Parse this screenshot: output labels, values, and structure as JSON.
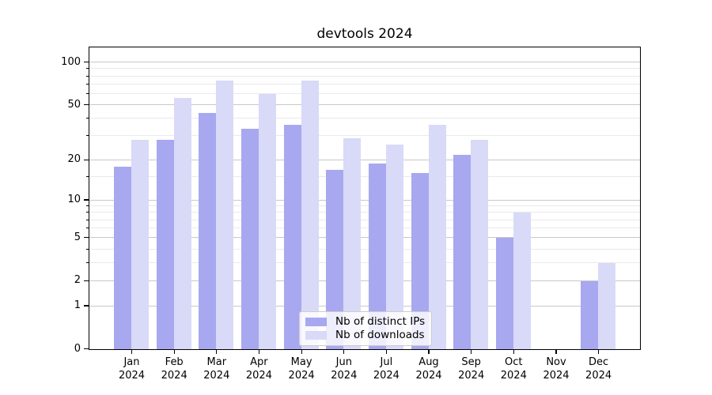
{
  "title": "devtools 2024",
  "colors": {
    "ips_bar": "#a8a8f0",
    "downloads_bar": "#d9d9f8",
    "grid_major": "#c8c8c8",
    "grid_minor": "#eaeaea",
    "spine": "#000000",
    "legend_border": "#cccccc"
  },
  "chart_data": {
    "type": "bar",
    "title": "devtools 2024",
    "x_categories": [
      "Jan",
      "Feb",
      "Mar",
      "Apr",
      "May",
      "Jun",
      "Jul",
      "Aug",
      "Sep",
      "Oct",
      "Nov",
      "Dec"
    ],
    "x_year_line": "2024",
    "series": [
      {
        "name": "Nb of distinct IPs",
        "color_key": "ips_bar",
        "values": [
          18,
          28,
          44,
          34,
          36,
          17,
          19,
          16,
          22,
          5,
          0,
          2
        ]
      },
      {
        "name": "Nb of downloads",
        "color_key": "downloads_bar",
        "values": [
          28,
          56,
          75,
          60,
          75,
          29,
          26,
          36,
          28,
          8,
          0,
          3
        ]
      }
    ],
    "y_scale": "log1p",
    "y_major_ticks": [
      0,
      1,
      2,
      5,
      10,
      20,
      50,
      100
    ],
    "y_minor_ticks": [
      3,
      4,
      6,
      7,
      8,
      9,
      15,
      30,
      40,
      60,
      70,
      80,
      90
    ],
    "xlabel": "",
    "ylabel": "",
    "grid": true,
    "legend_position": "lower center"
  }
}
